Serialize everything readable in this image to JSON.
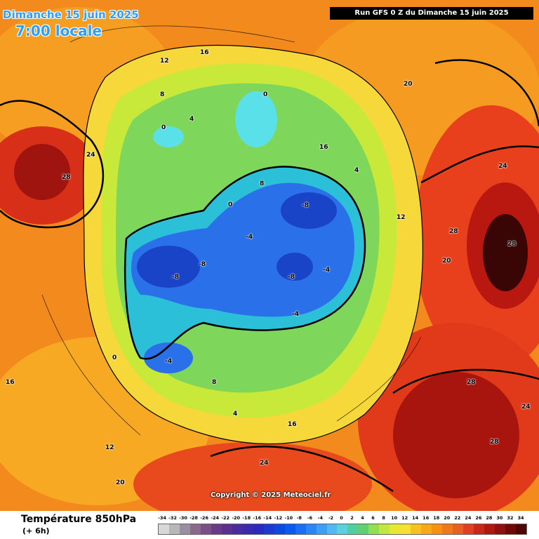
{
  "map": {
    "date_text": "Dimanche 15 juin 2025",
    "local_time": "7:00 locale",
    "run_text": "Run GFS 0 Z du Dimanche 15 juin 2025",
    "copyright": "Copyright © 2025 Meteociel.fr",
    "variable": "Température 850hPa",
    "forecast_offset": "(+ 6h)",
    "isotherm_labels": [
      "-8",
      "-4",
      "0",
      "4",
      "8",
      "12",
      "16",
      "20",
      "24",
      "28"
    ]
  },
  "legend": {
    "values": [
      "-34",
      "-32",
      "-30",
      "-28",
      "-26",
      "-24",
      "-22",
      "-20",
      "-18",
      "-16",
      "-14",
      "-12",
      "-10",
      "-8",
      "-6",
      "-4",
      "-2",
      "0",
      "2",
      "4",
      "6",
      "8",
      "10",
      "12",
      "14",
      "16",
      "18",
      "20",
      "22",
      "24",
      "26",
      "28",
      "30",
      "32",
      "34"
    ],
    "colors": [
      "#d8d8d8",
      "#b8b8b8",
      "#9a8fa0",
      "#8a6a8a",
      "#7a4f86",
      "#6a3a8a",
      "#5a2f90",
      "#4a2aa0",
      "#3a2ab0",
      "#2a2ac0",
      "#1a3ad0",
      "#0a4ae0",
      "#0a5af0",
      "#1a6ef5",
      "#2a86f5",
      "#3aa0f5",
      "#50b8f5",
      "#5ad0e0",
      "#50d0a0",
      "#60d070",
      "#90e050",
      "#c0e840",
      "#e8e830",
      "#f8e030",
      "#f8c020",
      "#f8a818",
      "#f89010",
      "#f07818",
      "#e86020",
      "#e04020",
      "#c82818",
      "#b01810",
      "#901010",
      "#700808",
      "#500404"
    ]
  }
}
